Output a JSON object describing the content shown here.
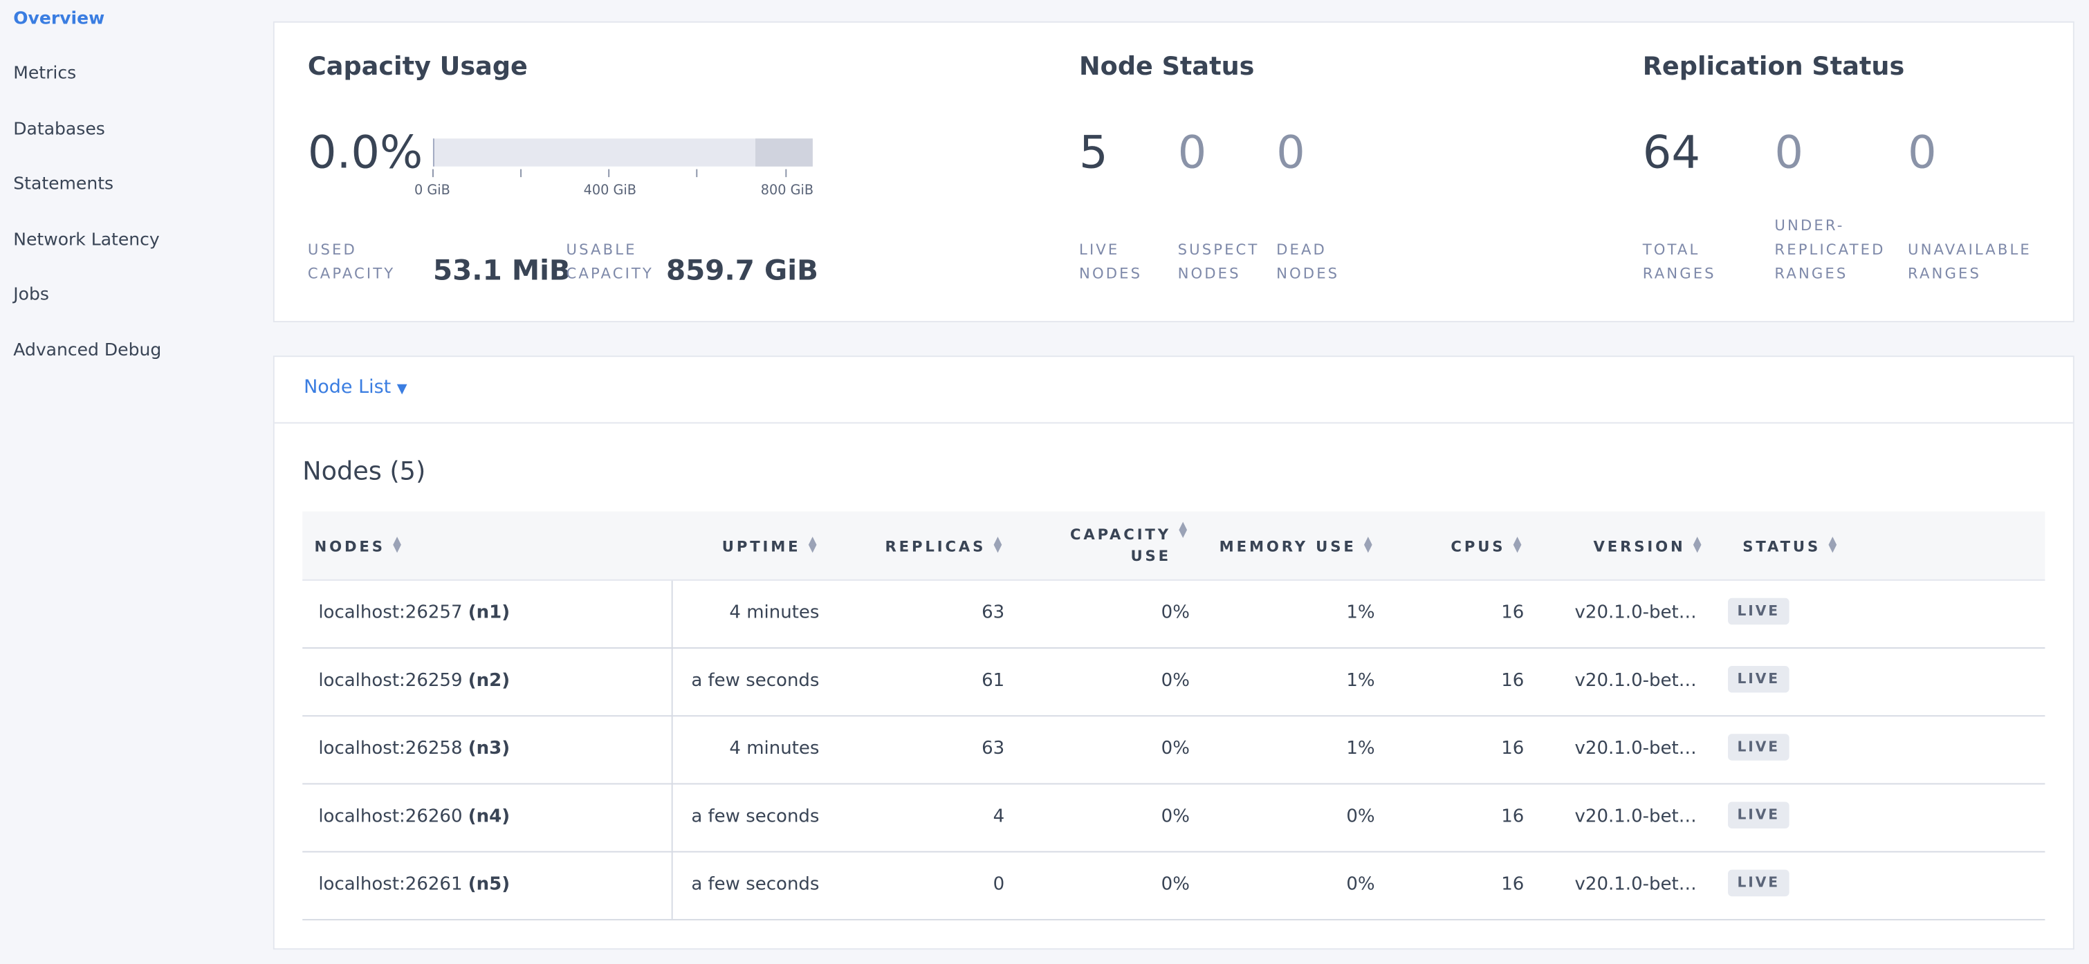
{
  "nav": [
    "Overview",
    "Metrics",
    "Databases",
    "Statements",
    "Network Latency",
    "Jobs",
    "Advanced Debug"
  ],
  "capacity": {
    "title": "Capacity Usage",
    "percent": "0.0%",
    "tick_labels": [
      "0 GiB",
      "400 GiB",
      "800 GiB"
    ],
    "used_label": "USED CAPACITY",
    "used": "53.1 MiB",
    "usable_label": "USABLE CAPACITY",
    "usable": "859.7 GiB"
  },
  "node_status": {
    "title": "Node Status",
    "stats": [
      {
        "value": "5",
        "label": "LIVE NODES"
      },
      {
        "value": "0",
        "label": "SUSPECT NODES"
      },
      {
        "value": "0",
        "label": "DEAD NODES"
      }
    ]
  },
  "replication": {
    "title": "Replication Status",
    "stats": [
      {
        "value": "64",
        "label": "TOTAL RANGES"
      },
      {
        "value": "0",
        "label": "UNDER-REPLICATED RANGES"
      },
      {
        "value": "0",
        "label": "UNAVAILABLE RANGES"
      }
    ]
  },
  "node_list": {
    "dropdown": "Node List",
    "heading": "Nodes (5)",
    "columns": [
      "NODES",
      "UPTIME",
      "REPLICAS",
      "CAPACITY USE",
      "MEMORY USE",
      "CPUS",
      "VERSION",
      "STATUS"
    ],
    "rows": [
      {
        "address": "localhost:26257",
        "id": "(n1)",
        "cells": [
          "4 minutes",
          "63",
          "0%",
          "1%",
          "16",
          "v20.1.0-bet…",
          "LIVE"
        ]
      },
      {
        "address": "localhost:26259",
        "id": "(n2)",
        "cells": [
          "a few seconds",
          "61",
          "0%",
          "1%",
          "16",
          "v20.1.0-bet…",
          "LIVE"
        ]
      },
      {
        "address": "localhost:26258",
        "id": "(n3)",
        "cells": [
          "4 minutes",
          "63",
          "0%",
          "1%",
          "16",
          "v20.1.0-bet…",
          "LIVE"
        ]
      },
      {
        "address": "localhost:26260",
        "id": "(n4)",
        "cells": [
          "a few seconds",
          "4",
          "0%",
          "0%",
          "16",
          "v20.1.0-bet…",
          "LIVE"
        ]
      },
      {
        "address": "localhost:26261",
        "id": "(n5)",
        "cells": [
          "a few seconds",
          "0",
          "0%",
          "0%",
          "16",
          "v20.1.0-bet…",
          "LIVE"
        ]
      }
    ]
  }
}
